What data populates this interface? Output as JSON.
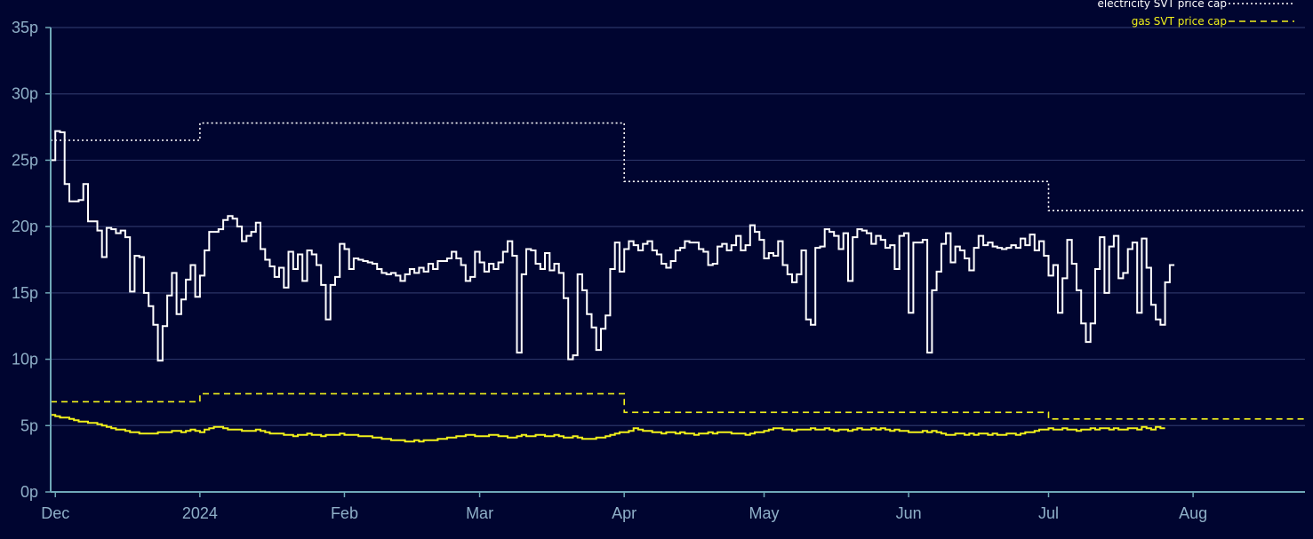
{
  "chart_data": {
    "type": "line",
    "background": "#000530",
    "grid": true,
    "legend_position": "top-right",
    "y_unit": "p",
    "ylim": [
      0,
      35
    ],
    "yticks": [
      {
        "value": 0,
        "label": "0p"
      },
      {
        "value": 5,
        "label": "5p"
      },
      {
        "value": 10,
        "label": "10p"
      },
      {
        "value": 15,
        "label": "15p"
      },
      {
        "value": 20,
        "label": "20p"
      },
      {
        "value": 25,
        "label": "25p"
      },
      {
        "value": 30,
        "label": "30p"
      },
      {
        "value": 35,
        "label": "35p"
      }
    ],
    "xlim": [
      "2023-11-30",
      "2024-08-25"
    ],
    "xticks": [
      {
        "date": "2023-12-01",
        "label": "Dec"
      },
      {
        "date": "2024-01-01",
        "label": "2024"
      },
      {
        "date": "2024-02-01",
        "label": "Feb"
      },
      {
        "date": "2024-03-01",
        "label": "Mar"
      },
      {
        "date": "2024-04-01",
        "label": "Apr"
      },
      {
        "date": "2024-05-01",
        "label": "May"
      },
      {
        "date": "2024-06-01",
        "label": "Jun"
      },
      {
        "date": "2024-07-01",
        "label": "Jul"
      },
      {
        "date": "2024-08-01",
        "label": "Aug"
      }
    ],
    "series": [
      {
        "name": "electricity SVT price cap",
        "style": "dotted",
        "color": "#ffffff",
        "legend_label": "electricity SVT price cap",
        "steps": [
          {
            "from": "2023-11-30",
            "value": 26.5
          },
          {
            "from": "2024-01-01",
            "value": 27.8
          },
          {
            "from": "2024-04-01",
            "value": 23.4
          },
          {
            "from": "2024-07-01",
            "value": 21.2
          }
        ]
      },
      {
        "name": "gas SVT price cap",
        "style": "dashed",
        "color": "#f2f21a",
        "legend_label": "gas SVT price cap",
        "steps": [
          {
            "from": "2023-11-30",
            "value": 6.8
          },
          {
            "from": "2024-01-01",
            "value": 7.4
          },
          {
            "from": "2024-04-01",
            "value": 6.0
          },
          {
            "from": "2024-07-01",
            "value": 5.5
          }
        ]
      },
      {
        "name": "",
        "style": "solid-step",
        "color": "#ffffff",
        "start": "2023-11-30",
        "values": [
          25,
          27.2,
          27.1,
          23.2,
          21.9,
          21.9,
          22.0,
          23.2,
          20.4,
          20.4,
          19.7,
          17.7,
          19.9,
          19.8,
          19.5,
          19.7,
          19.2,
          15.1,
          17.8,
          17.7,
          15.0,
          14.0,
          12.6,
          9.9,
          12.5,
          14.8,
          16.5,
          13.4,
          14.5,
          16.0,
          17.1,
          14.7,
          16.3,
          18.2,
          19.6,
          19.6,
          19.8,
          20.5,
          20.8,
          20.6,
          20.0,
          18.9,
          19.3,
          19.6,
          20.3,
          18.3,
          17.5,
          17.0,
          16.2,
          16.9,
          15.4,
          18.1,
          16.8,
          17.9,
          15.9,
          18.2,
          17.9,
          17.1,
          15.6,
          13.0,
          15.6,
          16.2,
          18.7,
          18.3,
          16.8,
          17.6,
          17.5,
          17.4,
          17.3,
          17.2,
          16.8,
          16.5,
          16.4,
          16.5,
          16.3,
          15.9,
          16.4,
          16.8,
          16.5,
          16.9,
          16.6,
          17.2,
          16.8,
          17.4,
          17.4,
          17.6,
          18.1,
          17.6,
          17.1,
          15.9,
          16.2,
          18.1,
          17.3,
          16.6,
          17.2,
          16.8,
          17.3,
          18.1,
          18.9,
          17.8,
          10.5,
          16.4,
          18.3,
          18.2,
          17.2,
          16.8,
          18.0,
          16.7,
          17.2,
          16.5,
          14.6,
          10.0,
          10.3,
          16.4,
          15.2,
          13.4,
          12.4,
          10.7,
          12.3,
          13.3,
          16.8,
          18.8,
          16.6,
          18.3,
          18.9,
          18.6,
          18.2,
          18.7,
          18.9,
          18.2,
          17.9,
          17.2,
          16.9,
          17.4,
          18.2,
          18.4,
          18.9,
          18.8,
          18.8,
          18.3,
          18.1,
          17.1,
          17.2,
          18.5,
          18.7,
          18.2,
          18.6,
          19.3,
          18.2,
          18.6,
          20.1,
          19.6,
          19.0,
          17.6,
          18.0,
          17.8,
          18.9,
          17.1,
          16.4,
          15.8,
          16.4,
          18.2,
          13.0,
          12.6,
          18.4,
          18.5,
          19.8,
          19.6,
          19.3,
          18.3,
          19.5,
          15.9,
          19.2,
          19.8,
          19.7,
          19.5,
          18.7,
          19.3,
          19.0,
          18.4,
          18.6,
          16.8,
          19.3,
          19.5,
          13.5,
          18.8,
          18.8,
          19.0,
          10.5,
          15.2,
          16.6,
          18.7,
          19.5,
          17.3,
          18.5,
          18.2,
          17.6,
          16.7,
          18.4,
          19.3,
          18.6,
          18.8,
          18.5,
          18.4,
          18.3,
          18.4,
          18.6,
          18.4,
          19.1,
          18.6,
          19.4,
          18.2,
          18.9,
          17.8,
          16.3,
          17.1,
          13.5,
          16.1,
          19.0,
          17.2,
          15.2,
          12.7,
          11.3,
          12.7,
          16.8,
          19.2,
          15.0,
          18.5,
          19.3,
          16.1,
          16.5,
          18.3,
          18.8,
          13.5,
          19.1,
          16.9,
          14.1,
          13.0,
          12.6,
          15.8,
          17.1
        ]
      },
      {
        "name": "",
        "style": "solid-step",
        "color": "#f2f21a",
        "start": "2023-11-30",
        "values": [
          5.8,
          5.7,
          5.6,
          5.6,
          5.5,
          5.4,
          5.3,
          5.3,
          5.2,
          5.2,
          5.1,
          5.0,
          4.9,
          4.8,
          4.7,
          4.7,
          4.6,
          4.5,
          4.5,
          4.4,
          4.4,
          4.4,
          4.4,
          4.5,
          4.5,
          4.5,
          4.6,
          4.6,
          4.5,
          4.6,
          4.7,
          4.6,
          4.5,
          4.7,
          4.8,
          4.9,
          4.9,
          4.8,
          4.7,
          4.7,
          4.7,
          4.6,
          4.6,
          4.6,
          4.7,
          4.6,
          4.5,
          4.4,
          4.4,
          4.4,
          4.3,
          4.3,
          4.2,
          4.3,
          4.3,
          4.4,
          4.3,
          4.3,
          4.2,
          4.3,
          4.3,
          4.3,
          4.4,
          4.3,
          4.3,
          4.3,
          4.2,
          4.2,
          4.2,
          4.1,
          4.1,
          4.0,
          4.0,
          3.9,
          3.9,
          3.9,
          3.8,
          3.8,
          3.9,
          3.8,
          3.9,
          3.9,
          3.9,
          4.0,
          4.0,
          4.1,
          4.1,
          4.2,
          4.2,
          4.3,
          4.3,
          4.2,
          4.2,
          4.2,
          4.3,
          4.3,
          4.2,
          4.2,
          4.1,
          4.1,
          4.2,
          4.3,
          4.2,
          4.2,
          4.3,
          4.3,
          4.2,
          4.2,
          4.3,
          4.2,
          4.1,
          4.1,
          4.2,
          4.1,
          4.0,
          4.0,
          4.0,
          4.1,
          4.1,
          4.2,
          4.3,
          4.4,
          4.5,
          4.5,
          4.6,
          4.8,
          4.7,
          4.6,
          4.6,
          4.5,
          4.5,
          4.4,
          4.5,
          4.5,
          4.4,
          4.5,
          4.4,
          4.4,
          4.3,
          4.4,
          4.4,
          4.5,
          4.4,
          4.5,
          4.5,
          4.5,
          4.4,
          4.4,
          4.4,
          4.3,
          4.4,
          4.5,
          4.5,
          4.6,
          4.7,
          4.8,
          4.8,
          4.7,
          4.7,
          4.6,
          4.7,
          4.7,
          4.7,
          4.8,
          4.7,
          4.7,
          4.8,
          4.7,
          4.6,
          4.7,
          4.7,
          4.6,
          4.7,
          4.8,
          4.7,
          4.7,
          4.8,
          4.7,
          4.8,
          4.7,
          4.6,
          4.7,
          4.6,
          4.6,
          4.5,
          4.5,
          4.5,
          4.6,
          4.5,
          4.6,
          4.5,
          4.4,
          4.3,
          4.3,
          4.4,
          4.4,
          4.3,
          4.4,
          4.3,
          4.4,
          4.4,
          4.3,
          4.4,
          4.3,
          4.3,
          4.4,
          4.4,
          4.3,
          4.4,
          4.5,
          4.5,
          4.6,
          4.7,
          4.7,
          4.8,
          4.7,
          4.7,
          4.8,
          4.7,
          4.7,
          4.6,
          4.7,
          4.7,
          4.8,
          4.7,
          4.8,
          4.8,
          4.7,
          4.8,
          4.7,
          4.7,
          4.8,
          4.8,
          4.7,
          4.9,
          4.8,
          4.7,
          4.9,
          4.8
        ]
      }
    ]
  }
}
